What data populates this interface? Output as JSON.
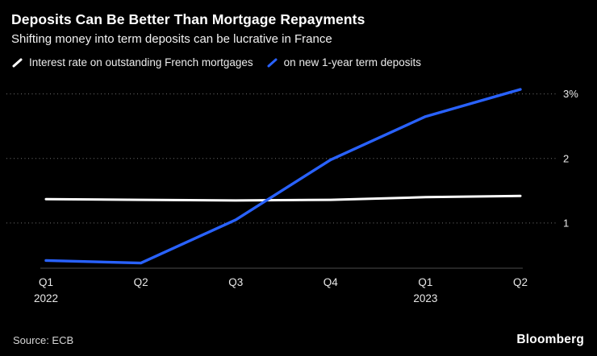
{
  "header": {
    "title": "Deposits Can Be Better Than Mortgage Repayments",
    "subtitle": "Shifting money into term deposits can be lucrative in France"
  },
  "legend": [
    {
      "label": "Interest rate on outstanding French mortgages",
      "color": "#ffffff"
    },
    {
      "label": "on new 1-year term deposits",
      "color": "#2962ff"
    }
  ],
  "chart_data": {
    "type": "line",
    "title": "Deposits Can Be Better Than Mortgage Repayments",
    "subtitle": "Shifting money into term deposits can be lucrative in France",
    "x_ticks": [
      {
        "quarter": "Q1",
        "year": "2022"
      },
      {
        "quarter": "Q2",
        "year": ""
      },
      {
        "quarter": "Q3",
        "year": ""
      },
      {
        "quarter": "Q4",
        "year": ""
      },
      {
        "quarter": "Q1",
        "year": "2023"
      },
      {
        "quarter": "Q2",
        "year": ""
      }
    ],
    "y_ticks": [
      {
        "value": 3,
        "label": "3%"
      },
      {
        "value": 2,
        "label": "2"
      },
      {
        "value": 1,
        "label": "1"
      }
    ],
    "ylim": [
      0.3,
      3.22
    ],
    "grid": "horizontal-dotted",
    "legend_position": "top",
    "series": [
      {
        "name": "Interest rate on outstanding French mortgages",
        "color": "#ffffff",
        "values": [
          1.37,
          1.36,
          1.35,
          1.36,
          1.4,
          1.42
        ]
      },
      {
        "name": "on new 1-year term deposits",
        "color": "#2962ff",
        "values": [
          0.42,
          0.38,
          1.05,
          1.98,
          2.65,
          3.07
        ]
      }
    ]
  },
  "footer": {
    "source": "Source: ECB",
    "brand": "Bloomberg"
  },
  "colors": {
    "background": "#000000",
    "gridline": "#737373",
    "axis": "#4d4d4d",
    "tick_text": "#e8e8e8"
  }
}
